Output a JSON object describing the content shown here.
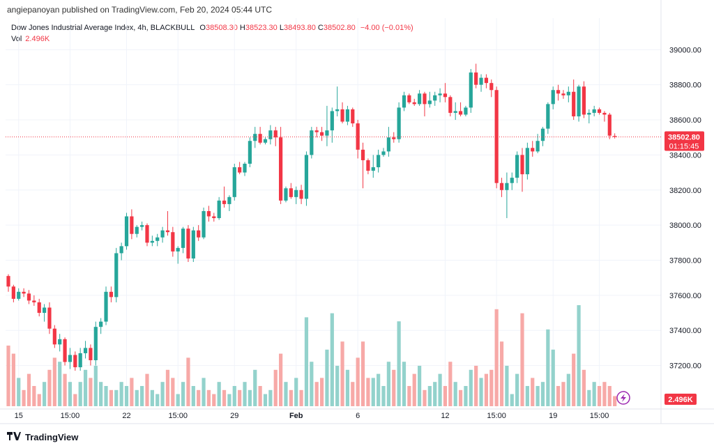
{
  "header": {
    "published": "angiepanoyan published on TradingView.com, Feb 20, 2024 05:44 UTC"
  },
  "legend": {
    "symbol": "Dow Jones Industrial Average Index, 4h, BLACKBULL",
    "o_label": "O",
    "o": "38508.30",
    "h_label": "H",
    "h": "38523.30",
    "l_label": "L",
    "l": "38493.80",
    "c_label": "C",
    "c": "38502.80",
    "change": "−4.00 (−0.01%)",
    "vol_label": "Vol",
    "vol": "2.496K"
  },
  "price_badge": {
    "price": "38502.80",
    "countdown": "01:15:45"
  },
  "volume_badge": "2.496K",
  "footer": {
    "brand": "TradingView",
    "logo_icon": "tradingview-logo-icon"
  },
  "colors": {
    "up": "#26a69a",
    "down": "#f23645",
    "up_vol": "#93d2cc",
    "down_vol": "#f7a9a7",
    "grid": "#f0f3fa"
  },
  "chart_data": {
    "type": "candlestick",
    "symbol": "Dow Jones Industrial Average Index",
    "interval": "4h",
    "ylim": [
      36960,
      39180
    ],
    "y_ticks": [
      37200,
      37400,
      37600,
      37800,
      38000,
      38200,
      38400,
      38600,
      38800,
      39000
    ],
    "y_tick_labels": [
      "37200.00",
      "37400.00",
      "37600.00",
      "37800.00",
      "38000.00",
      "38200.00",
      "38400.00",
      "38600.00",
      "38800.00",
      "39000.00"
    ],
    "x_tick_labels": [
      {
        "label": "15",
        "index": 2
      },
      {
        "label": "15:00",
        "index": 12
      },
      {
        "label": "22",
        "index": 23
      },
      {
        "label": "15:00",
        "index": 33
      },
      {
        "label": "29",
        "index": 44
      },
      {
        "label": "Feb",
        "index": 56
      },
      {
        "label": "6",
        "index": 68
      },
      {
        "label": "12",
        "index": 85
      },
      {
        "label": "15:00",
        "index": 95
      },
      {
        "label": "19",
        "index": 106
      },
      {
        "label": "15:00",
        "index": 115
      }
    ],
    "last_price": 38502.8,
    "candles": [
      [
        37710,
        37720,
        37620,
        37650,
        1.5
      ],
      [
        37650,
        37660,
        37560,
        37580,
        1.3
      ],
      [
        37580,
        37640,
        37570,
        37620,
        0.7
      ],
      [
        37620,
        37640,
        37590,
        37610,
        0.4
      ],
      [
        37610,
        37630,
        37550,
        37570,
        0.8
      ],
      [
        37570,
        37600,
        37540,
        37560,
        0.5
      ],
      [
        37560,
        37580,
        37480,
        37500,
        0.3
      ],
      [
        37500,
        37550,
        37450,
        37530,
        0.6
      ],
      [
        37530,
        37560,
        37380,
        37410,
        0.9
      ],
      [
        37410,
        37430,
        37300,
        37320,
        1.2
      ],
      [
        37320,
        37380,
        37280,
        37350,
        1.1
      ],
      [
        37350,
        37360,
        37200,
        37220,
        0.8
      ],
      [
        37220,
        37300,
        37180,
        37260,
        0.6
      ],
      [
        37260,
        37280,
        37170,
        37190,
        0.3
      ],
      [
        37190,
        37300,
        37170,
        37270,
        0.6
      ],
      [
        37270,
        37340,
        37240,
        37300,
        0.9
      ],
      [
        37300,
        37320,
        37200,
        37230,
        0.7
      ],
      [
        37230,
        37450,
        37200,
        37420,
        1.0
      ],
      [
        37420,
        37470,
        37380,
        37450,
        0.6
      ],
      [
        37450,
        37650,
        37430,
        37620,
        0.5
      ],
      [
        37620,
        37650,
        37560,
        37590,
        0.4
      ],
      [
        37590,
        37870,
        37560,
        37840,
        0.4
      ],
      [
        37840,
        37900,
        37800,
        37880,
        0.6
      ],
      [
        37880,
        38070,
        37860,
        38050,
        0.5
      ],
      [
        38050,
        38090,
        37920,
        37950,
        0.7
      ],
      [
        37950,
        38000,
        37930,
        37990,
        0.4
      ],
      [
        37990,
        38020,
        37970,
        38000,
        0.5
      ],
      [
        38000,
        38010,
        37880,
        37900,
        0.8
      ],
      [
        37900,
        37940,
        37880,
        37910,
        0.4
      ],
      [
        37910,
        37950,
        37880,
        37930,
        0.3
      ],
      [
        37930,
        37990,
        37900,
        37970,
        0.6
      ],
      [
        37970,
        38080,
        37940,
        37960,
        0.9
      ],
      [
        37960,
        37990,
        37820,
        37850,
        0.7
      ],
      [
        37850,
        37880,
        37780,
        37870,
        0.3
      ],
      [
        37870,
        37990,
        37840,
        37980,
        0.6
      ],
      [
        37980,
        38000,
        37790,
        37810,
        1.2
      ],
      [
        37810,
        37990,
        37790,
        37970,
        0.5
      ],
      [
        37970,
        38000,
        37910,
        37930,
        0.4
      ],
      [
        37930,
        38100,
        37920,
        38080,
        0.7
      ],
      [
        38080,
        38110,
        38020,
        38050,
        0.4
      ],
      [
        38050,
        38070,
        38020,
        38040,
        0.3
      ],
      [
        38040,
        38160,
        38030,
        38140,
        0.6
      ],
      [
        38140,
        38220,
        38100,
        38120,
        0.4
      ],
      [
        38120,
        38170,
        38080,
        38160,
        0.3
      ],
      [
        38160,
        38350,
        38140,
        38330,
        0.5
      ],
      [
        38330,
        38360,
        38290,
        38300,
        0.4
      ],
      [
        38300,
        38360,
        38280,
        38350,
        0.6
      ],
      [
        38350,
        38500,
        38330,
        38480,
        0.4
      ],
      [
        38480,
        38560,
        38440,
        38520,
        0.9
      ],
      [
        38520,
        38560,
        38460,
        38470,
        0.5
      ],
      [
        38470,
        38500,
        38460,
        38490,
        0.3
      ],
      [
        38490,
        38570,
        38460,
        38540,
        0.4
      ],
      [
        38540,
        38560,
        38450,
        38500,
        0.9
      ],
      [
        38500,
        38560,
        38120,
        38140,
        1.3
      ],
      [
        38140,
        38220,
        38130,
        38210,
        0.6
      ],
      [
        38210,
        38240,
        38150,
        38160,
        0.4
      ],
      [
        38160,
        38220,
        38120,
        38200,
        0.7
      ],
      [
        38200,
        38230,
        38120,
        38150,
        0.4
      ],
      [
        38150,
        38420,
        38110,
        38400,
        2.2
      ],
      [
        38400,
        38560,
        38380,
        38540,
        1.1
      ],
      [
        38540,
        38560,
        38500,
        38530,
        0.6
      ],
      [
        38530,
        38560,
        38480,
        38510,
        0.7
      ],
      [
        38510,
        38680,
        38450,
        38540,
        1.4
      ],
      [
        38540,
        38670,
        38470,
        38650,
        2.3
      ],
      [
        38650,
        38790,
        38620,
        38660,
        1.0
      ],
      [
        38660,
        38700,
        38580,
        38590,
        1.6
      ],
      [
        38590,
        38680,
        38570,
        38660,
        0.9
      ],
      [
        38660,
        38670,
        38560,
        38580,
        0.6
      ],
      [
        38580,
        38600,
        38380,
        38430,
        1.2
      ],
      [
        38430,
        38470,
        38210,
        38370,
        1.6
      ],
      [
        38370,
        38380,
        38290,
        38310,
        0.7
      ],
      [
        38310,
        38400,
        38270,
        38330,
        0.7
      ],
      [
        38330,
        38430,
        38300,
        38400,
        0.8
      ],
      [
        38400,
        38440,
        38390,
        38420,
        0.5
      ],
      [
        38420,
        38560,
        38390,
        38500,
        1.1
      ],
      [
        38500,
        38530,
        38470,
        38490,
        0.9
      ],
      [
        38490,
        38700,
        38470,
        38670,
        2.1
      ],
      [
        38670,
        38760,
        38650,
        38740,
        1.1
      ],
      [
        38740,
        38750,
        38690,
        38700,
        0.5
      ],
      [
        38700,
        38720,
        38680,
        38690,
        0.8
      ],
      [
        38690,
        38770,
        38680,
        38750,
        1.0
      ],
      [
        38750,
        38760,
        38620,
        38690,
        0.4
      ],
      [
        38690,
        38760,
        38670,
        38710,
        0.5
      ],
      [
        38710,
        38760,
        38680,
        38740,
        0.6
      ],
      [
        38740,
        38780,
        38700,
        38750,
        0.8
      ],
      [
        38750,
        38810,
        38700,
        38730,
        0.5
      ],
      [
        38730,
        38740,
        38620,
        38640,
        1.1
      ],
      [
        38640,
        38700,
        38600,
        38650,
        0.6
      ],
      [
        38650,
        38700,
        38620,
        38630,
        0.4
      ],
      [
        38630,
        38680,
        38620,
        38670,
        0.5
      ],
      [
        38670,
        38890,
        38640,
        38870,
        0.9
      ],
      [
        38870,
        38920,
        38780,
        38800,
        1.0
      ],
      [
        38800,
        38860,
        38760,
        38840,
        0.7
      ],
      [
        38840,
        38860,
        38780,
        38810,
        0.8
      ],
      [
        38810,
        38830,
        38730,
        38770,
        0.9
      ],
      [
        38770,
        38790,
        38210,
        38240,
        2.4
      ],
      [
        38240,
        38270,
        38160,
        38200,
        1.6
      ],
      [
        38200,
        38300,
        38040,
        38240,
        1.0
      ],
      [
        38240,
        38300,
        38200,
        38270,
        0.3
      ],
      [
        38270,
        38420,
        38240,
        38400,
        0.8
      ],
      [
        38400,
        38440,
        38190,
        38290,
        2.3
      ],
      [
        38290,
        38470,
        38260,
        38440,
        0.5
      ],
      [
        38440,
        38480,
        38390,
        38420,
        0.7
      ],
      [
        38420,
        38520,
        38410,
        38480,
        0.5
      ],
      [
        38480,
        38560,
        38450,
        38550,
        0.6
      ],
      [
        38550,
        38700,
        38520,
        38690,
        1.9
      ],
      [
        38690,
        38790,
        38660,
        38770,
        1.4
      ],
      [
        38770,
        38800,
        38710,
        38750,
        0.5
      ],
      [
        38750,
        38770,
        38720,
        38740,
        0.6
      ],
      [
        38740,
        38790,
        38700,
        38760,
        0.8
      ],
      [
        38760,
        38830,
        38600,
        38620,
        1.3
      ],
      [
        38620,
        38800,
        38590,
        38790,
        2.5
      ],
      [
        38790,
        38820,
        38610,
        38630,
        0.9
      ],
      [
        38630,
        38660,
        38580,
        38640,
        0.4
      ],
      [
        38640,
        38680,
        38620,
        38660,
        0.6
      ],
      [
        38660,
        38670,
        38630,
        38640,
        0.5
      ],
      [
        38640,
        38650,
        38590,
        38630,
        0.6
      ],
      [
        38630,
        38640,
        38490,
        38510,
        0.5
      ],
      [
        38508.3,
        38523.3,
        38493.8,
        38502.8,
        0.25
      ]
    ]
  }
}
